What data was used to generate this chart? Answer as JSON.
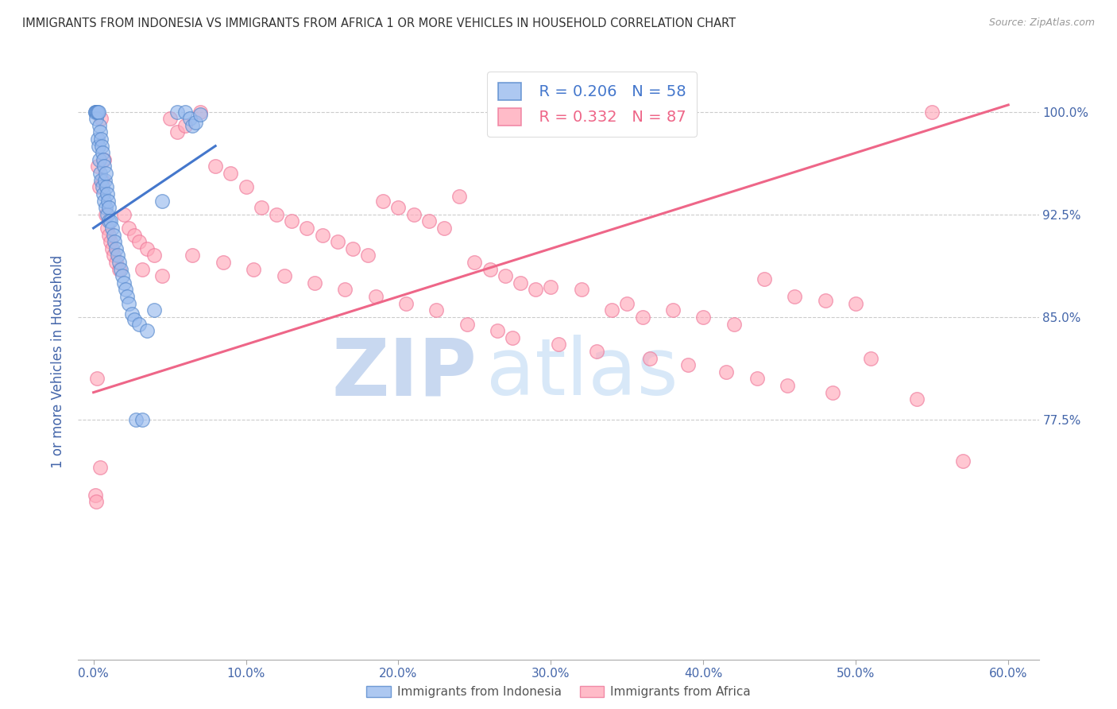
{
  "title": "IMMIGRANTS FROM INDONESIA VS IMMIGRANTS FROM AFRICA 1 OR MORE VEHICLES IN HOUSEHOLD CORRELATION CHART",
  "source": "Source: ZipAtlas.com",
  "xlabel_vals": [
    0.0,
    10.0,
    20.0,
    30.0,
    40.0,
    50.0,
    60.0
  ],
  "ylabel_vals": [
    77.5,
    85.0,
    92.5,
    100.0
  ],
  "xlim": [
    -1.0,
    62.0
  ],
  "ylim": [
    60.0,
    103.5
  ],
  "ylabel": "1 or more Vehicles in Household",
  "legend_blue_r": "0.206",
  "legend_blue_n": "58",
  "legend_pink_r": "0.332",
  "legend_pink_n": "87",
  "blue_color": "#99BBEE",
  "pink_color": "#FFAABB",
  "blue_edge_color": "#5588CC",
  "pink_edge_color": "#EE7799",
  "blue_line_color": "#4477CC",
  "pink_line_color": "#EE6688",
  "title_color": "#333333",
  "axis_label_color": "#4466AA",
  "tick_color": "#4466AA",
  "watermark_color_zip": "#C8D8F0",
  "watermark_color_atlas": "#D8E8F8",
  "bg_color": "#FFFFFF",
  "grid_color": "#CCCCCC",
  "blue_scatter_x": [
    0.1,
    0.15,
    0.2,
    0.2,
    0.25,
    0.3,
    0.3,
    0.35,
    0.35,
    0.4,
    0.4,
    0.45,
    0.45,
    0.5,
    0.5,
    0.55,
    0.6,
    0.6,
    0.65,
    0.65,
    0.7,
    0.7,
    0.75,
    0.8,
    0.8,
    0.85,
    0.9,
    0.9,
    0.95,
    1.0,
    1.0,
    1.1,
    1.2,
    1.3,
    1.4,
    1.5,
    1.6,
    1.7,
    1.8,
    1.9,
    2.0,
    2.1,
    2.2,
    2.3,
    2.5,
    2.7,
    3.0,
    3.5,
    4.0,
    4.5,
    5.5,
    6.0,
    6.3,
    6.5,
    6.7,
    7.0,
    2.8,
    3.2
  ],
  "blue_scatter_y": [
    100.0,
    100.0,
    100.0,
    99.5,
    100.0,
    100.0,
    98.0,
    100.0,
    97.5,
    99.0,
    96.5,
    98.5,
    95.5,
    98.0,
    95.0,
    97.5,
    97.0,
    94.5,
    96.5,
    94.0,
    96.0,
    93.5,
    95.0,
    95.5,
    93.0,
    94.5,
    94.0,
    92.5,
    93.5,
    93.0,
    92.0,
    92.0,
    91.5,
    91.0,
    90.5,
    90.0,
    89.5,
    89.0,
    88.5,
    88.0,
    87.5,
    87.0,
    86.5,
    86.0,
    85.2,
    84.8,
    84.5,
    84.0,
    85.5,
    93.5,
    100.0,
    100.0,
    99.5,
    99.0,
    99.2,
    99.8,
    77.5,
    77.5
  ],
  "blue_line_x": [
    0.0,
    8.0
  ],
  "blue_line_y": [
    91.5,
    97.5
  ],
  "pink_scatter_x": [
    0.15,
    0.2,
    0.3,
    0.4,
    0.5,
    0.6,
    0.7,
    0.8,
    0.9,
    1.0,
    1.1,
    1.2,
    1.3,
    1.5,
    1.7,
    2.0,
    2.3,
    2.7,
    3.0,
    3.5,
    4.0,
    5.0,
    5.5,
    6.0,
    7.0,
    8.0,
    9.0,
    10.0,
    11.0,
    12.0,
    13.0,
    14.0,
    15.0,
    16.0,
    17.0,
    18.0,
    19.0,
    20.0,
    21.0,
    22.0,
    23.0,
    24.0,
    25.0,
    26.0,
    27.0,
    28.0,
    29.0,
    30.0,
    32.0,
    34.0,
    35.0,
    36.0,
    38.0,
    40.0,
    42.0,
    44.0,
    46.0,
    48.0,
    50.0,
    55.0,
    3.2,
    4.5,
    6.5,
    8.5,
    10.5,
    12.5,
    14.5,
    16.5,
    18.5,
    20.5,
    22.5,
    24.5,
    26.5,
    27.5,
    30.5,
    33.0,
    36.5,
    39.0,
    41.5,
    43.5,
    45.5,
    48.5,
    51.0,
    54.0,
    57.0,
    0.25,
    0.45
  ],
  "pink_scatter_y": [
    72.0,
    71.5,
    96.0,
    94.5,
    99.5,
    95.0,
    96.5,
    92.5,
    91.5,
    91.0,
    90.5,
    90.0,
    89.5,
    89.0,
    88.5,
    92.5,
    91.5,
    91.0,
    90.5,
    90.0,
    89.5,
    99.5,
    98.5,
    99.0,
    100.0,
    96.0,
    95.5,
    94.5,
    93.0,
    92.5,
    92.0,
    91.5,
    91.0,
    90.5,
    90.0,
    89.5,
    93.5,
    93.0,
    92.5,
    92.0,
    91.5,
    93.8,
    89.0,
    88.5,
    88.0,
    87.5,
    87.0,
    87.2,
    87.0,
    85.5,
    86.0,
    85.0,
    85.5,
    85.0,
    84.5,
    87.8,
    86.5,
    86.2,
    86.0,
    100.0,
    88.5,
    88.0,
    89.5,
    89.0,
    88.5,
    88.0,
    87.5,
    87.0,
    86.5,
    86.0,
    85.5,
    84.5,
    84.0,
    83.5,
    83.0,
    82.5,
    82.0,
    81.5,
    81.0,
    80.5,
    80.0,
    79.5,
    82.0,
    79.0,
    74.5,
    80.5,
    74.0
  ],
  "pink_line_x": [
    0.0,
    60.0
  ],
  "pink_line_y": [
    79.5,
    100.5
  ]
}
